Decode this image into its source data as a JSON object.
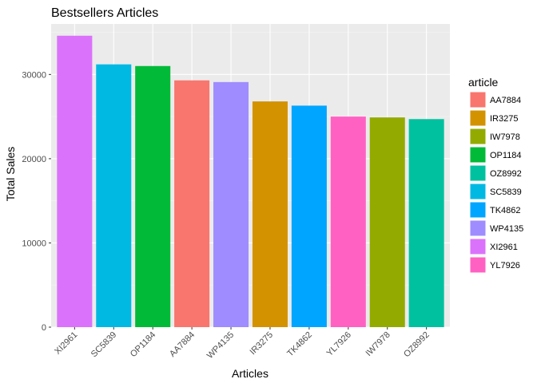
{
  "chart_data": {
    "type": "bar",
    "title": "Bestsellers Articles",
    "xlabel": "Articles",
    "ylabel": "Total Sales",
    "ylim": [
      0,
      36000
    ],
    "yticks": [
      0,
      10000,
      20000,
      30000
    ],
    "grid": true,
    "legend_position": "right",
    "legend_title": "article",
    "categories": [
      "XI2961",
      "SC5839",
      "OP1184",
      "AA7884",
      "WP4135",
      "IR3275",
      "TK4862",
      "YL7926",
      "IW7978",
      "OZ8992"
    ],
    "values": [
      34600,
      31200,
      31000,
      29300,
      29100,
      26800,
      26300,
      25000,
      24900,
      24700
    ],
    "legend": [
      {
        "label": "AA7884",
        "color": "#F8766D"
      },
      {
        "label": "IR3275",
        "color": "#D39200"
      },
      {
        "label": "IW7978",
        "color": "#93AA00"
      },
      {
        "label": "OP1184",
        "color": "#00BA38"
      },
      {
        "label": "OZ8992",
        "color": "#00C19F"
      },
      {
        "label": "SC5839",
        "color": "#00B9E3"
      },
      {
        "label": "TK4862",
        "color": "#00A5FF"
      },
      {
        "label": "WP4135",
        "color": "#9F8CFF"
      },
      {
        "label": "XI2961",
        "color": "#DB72FB"
      },
      {
        "label": "YL7926",
        "color": "#FF61C3"
      }
    ]
  }
}
